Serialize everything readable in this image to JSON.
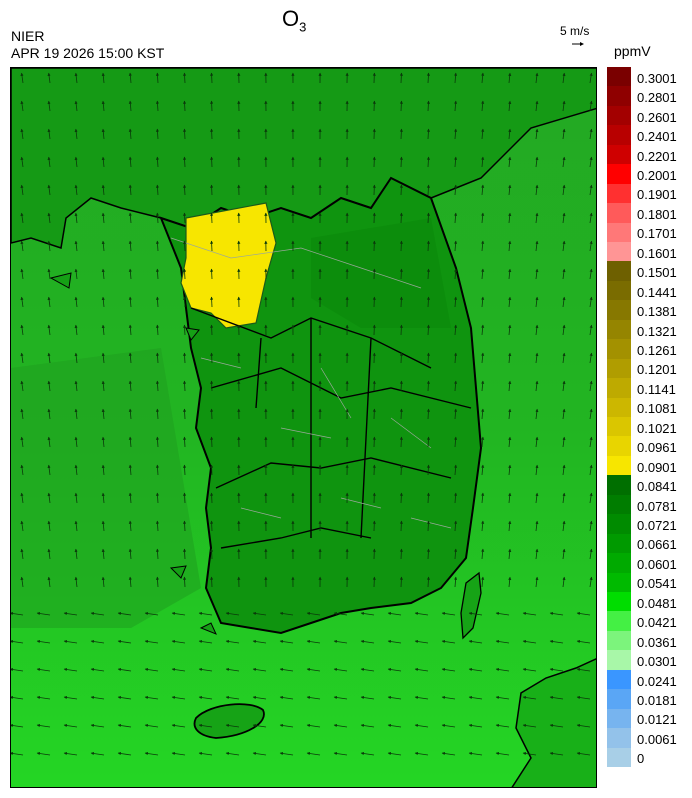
{
  "header": {
    "title_main": "O",
    "title_sub": "3",
    "agency": "NIER",
    "datetime": "APR 19 2026 15:00 KST",
    "reference_vector_label": "5 m/s",
    "unit": "ppmV"
  },
  "legend": {
    "bins": [
      {
        "label": "0.3001",
        "color": "#7a0000"
      },
      {
        "label": "0.2801",
        "color": "#8f0000"
      },
      {
        "label": "0.2601",
        "color": "#a30000"
      },
      {
        "label": "0.2401",
        "color": "#b80000"
      },
      {
        "label": "0.2201",
        "color": "#cf0000"
      },
      {
        "label": "0.2001",
        "color": "#ff0000"
      },
      {
        "label": "0.1901",
        "color": "#ff3030"
      },
      {
        "label": "0.1801",
        "color": "#ff5a5a"
      },
      {
        "label": "0.1701",
        "color": "#ff7878"
      },
      {
        "label": "0.1601",
        "color": "#ff9595"
      },
      {
        "label": "0.1501",
        "color": "#6e6000"
      },
      {
        "label": "0.1441",
        "color": "#7a6c00"
      },
      {
        "label": "0.1381",
        "color": "#877800"
      },
      {
        "label": "0.1321",
        "color": "#958500"
      },
      {
        "label": "0.1261",
        "color": "#a39100"
      },
      {
        "label": "0.1201",
        "color": "#b09d00"
      },
      {
        "label": "0.1141",
        "color": "#beaa00"
      },
      {
        "label": "0.1081",
        "color": "#ccb700"
      },
      {
        "label": "0.1021",
        "color": "#dac600"
      },
      {
        "label": "0.0961",
        "color": "#e8d500"
      },
      {
        "label": "0.0901",
        "color": "#f7e600"
      },
      {
        "label": "0.0841",
        "color": "#006f00"
      },
      {
        "label": "0.0781",
        "color": "#007d00"
      },
      {
        "label": "0.0721",
        "color": "#008b00"
      },
      {
        "label": "0.0661",
        "color": "#009a00"
      },
      {
        "label": "0.0601",
        "color": "#00aa00"
      },
      {
        "label": "0.0541",
        "color": "#00ba00"
      },
      {
        "label": "0.0481",
        "color": "#00dd00"
      },
      {
        "label": "0.0421",
        "color": "#44f044"
      },
      {
        "label": "0.0361",
        "color": "#7cf47c"
      },
      {
        "label": "0.0301",
        "color": "#a8f7a8"
      },
      {
        "label": "0.0241",
        "color": "#3a96ff"
      },
      {
        "label": "0.0181",
        "color": "#5aa6f5"
      },
      {
        "label": "0.0121",
        "color": "#77b4ef"
      },
      {
        "label": "0.0061",
        "color": "#93c2ea"
      },
      {
        "label": "0",
        "color": "#a8cfe7"
      }
    ]
  },
  "map": {
    "colors": {
      "sea_south": "#22d622",
      "sea_west": "#23b623",
      "land": "#15a015",
      "land_dark": "#0c8a0c",
      "hotspot": "#f7e600",
      "vectors": "#0a3a0a"
    }
  }
}
